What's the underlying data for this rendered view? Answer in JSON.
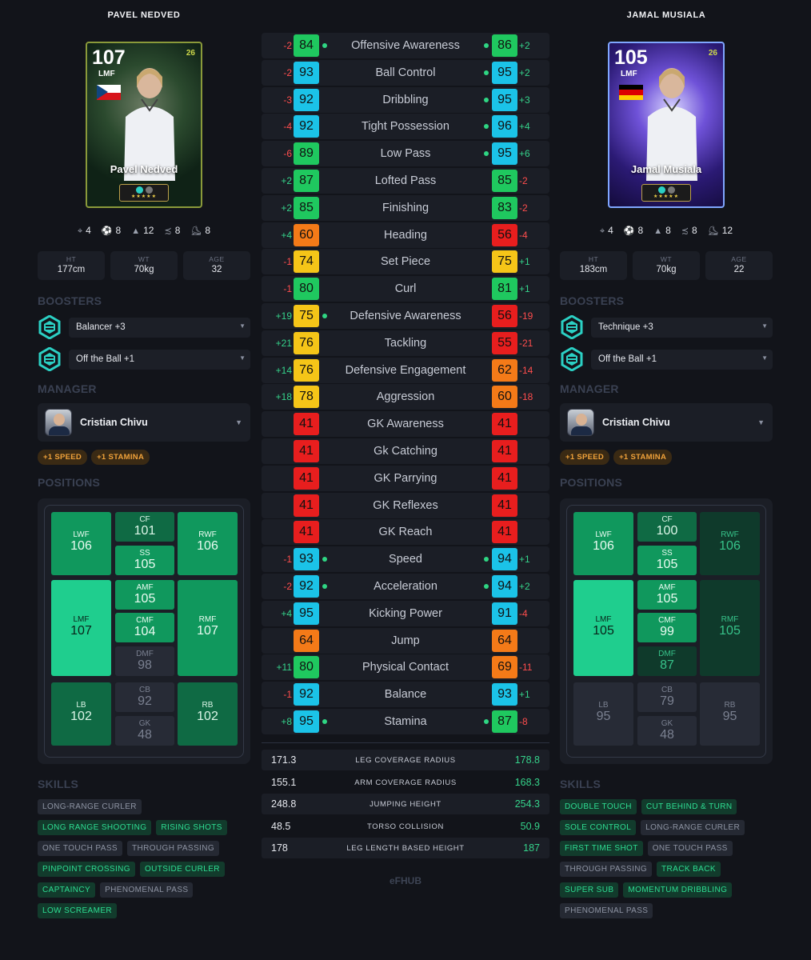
{
  "players": [
    {
      "name": "PAVEL NEDVED",
      "card": {
        "rating": "107",
        "position": "LMF",
        "name": "Pavel Nedved",
        "edition": "26",
        "flag": "czech-republic-flag"
      },
      "quick": [
        "4",
        "8",
        "12",
        "8",
        "8"
      ],
      "boxes": [
        {
          "label": "HT",
          "value": "177cm"
        },
        {
          "label": "WT",
          "value": "70kg"
        },
        {
          "label": "AGE",
          "value": "32"
        }
      ],
      "boosters_title": "BOOSTERS",
      "boosters": [
        "Balancer +3",
        "Off the Ball +1"
      ],
      "manager_title": "MANAGER",
      "manager": "Cristian Chivu",
      "manager_pills": [
        "+1 SPEED",
        "+1 STAMINA"
      ],
      "positions_title": "POSITIONS",
      "positions": {
        "LWF": "106",
        "CF": "101",
        "RWF": "106",
        "SS": "105",
        "LMF": "107",
        "AMF": "105",
        "RMF": "107",
        "CMF": "104",
        "DMF": "98",
        "LB": "102",
        "CB": "92",
        "RB": "102",
        "GK": "48"
      },
      "skills_title": "SKILLS",
      "skills": [
        {
          "name": "LONG-RANGE CURLER",
          "on": false
        },
        {
          "name": "LONG RANGE SHOOTING",
          "on": true
        },
        {
          "name": "RISING SHOTS",
          "on": true
        },
        {
          "name": "ONE TOUCH PASS",
          "on": false
        },
        {
          "name": "THROUGH PASSING",
          "on": false
        },
        {
          "name": "PINPOINT CROSSING",
          "on": true
        },
        {
          "name": "OUTSIDE CURLER",
          "on": true
        },
        {
          "name": "CAPTAINCY",
          "on": true
        },
        {
          "name": "PHENOMENAL PASS",
          "on": false
        },
        {
          "name": "LOW SCREAMER",
          "on": true
        }
      ]
    },
    {
      "name": "JAMAL MUSIALA",
      "card": {
        "rating": "105",
        "position": "LMF",
        "name": "Jamal Musiala",
        "edition": "26",
        "flag": "germany-flag"
      },
      "quick": [
        "4",
        "8",
        "8",
        "8",
        "12"
      ],
      "boxes": [
        {
          "label": "HT",
          "value": "183cm"
        },
        {
          "label": "WT",
          "value": "70kg"
        },
        {
          "label": "AGE",
          "value": "22"
        }
      ],
      "boosters_title": "BOOSTERS",
      "boosters": [
        "Technique +3",
        "Off the Ball +1"
      ],
      "manager_title": "MANAGER",
      "manager": "Cristian Chivu",
      "manager_pills": [
        "+1 SPEED",
        "+1 STAMINA"
      ],
      "positions_title": "POSITIONS",
      "positions": {
        "LWF": "106",
        "CF": "100",
        "RWF": "106",
        "SS": "105",
        "LMF": "105",
        "AMF": "105",
        "RMF": "105",
        "CMF": "99",
        "DMF": "87",
        "LB": "95",
        "CB": "79",
        "RB": "95",
        "GK": "48"
      },
      "skills_title": "SKILLS",
      "skills": [
        {
          "name": "DOUBLE TOUCH",
          "on": true
        },
        {
          "name": "CUT BEHIND & TURN",
          "on": true
        },
        {
          "name": "SOLE CONTROL",
          "on": true
        },
        {
          "name": "LONG-RANGE CURLER",
          "on": false
        },
        {
          "name": "FIRST TIME SHOT",
          "on": true
        },
        {
          "name": "ONE TOUCH PASS",
          "on": false
        },
        {
          "name": "THROUGH PASSING",
          "on": false
        },
        {
          "name": "TRACK BACK",
          "on": true
        },
        {
          "name": "SUPER SUB",
          "on": true
        },
        {
          "name": "MOMENTUM DRIBBLING",
          "on": true
        },
        {
          "name": "PHENOMENAL PASS",
          "on": false
        }
      ]
    }
  ],
  "stats": [
    {
      "label": "Offensive Awareness",
      "l": "84",
      "lc": "green",
      "ld": "-2",
      "ldot": true,
      "r": "86",
      "rc": "green",
      "rd": "+2",
      "rdot": true
    },
    {
      "label": "Ball Control",
      "l": "93",
      "lc": "blue",
      "ld": "-2",
      "ldot": false,
      "r": "95",
      "rc": "blue",
      "rd": "+2",
      "rdot": true
    },
    {
      "label": "Dribbling",
      "l": "92",
      "lc": "blue",
      "ld": "-3",
      "ldot": false,
      "r": "95",
      "rc": "blue",
      "rd": "+3",
      "rdot": true
    },
    {
      "label": "Tight Possession",
      "l": "92",
      "lc": "blue",
      "ld": "-4",
      "ldot": false,
      "r": "96",
      "rc": "blue",
      "rd": "+4",
      "rdot": true
    },
    {
      "label": "Low Pass",
      "l": "89",
      "lc": "green",
      "ld": "-6",
      "ldot": false,
      "r": "95",
      "rc": "blue",
      "rd": "+6",
      "rdot": true
    },
    {
      "label": "Lofted Pass",
      "l": "87",
      "lc": "green",
      "ld": "+2",
      "ldot": false,
      "r": "85",
      "rc": "green",
      "rd": "-2",
      "rdot": false
    },
    {
      "label": "Finishing",
      "l": "85",
      "lc": "green",
      "ld": "+2",
      "ldot": false,
      "r": "83",
      "rc": "green",
      "rd": "-2",
      "rdot": false
    },
    {
      "label": "Heading",
      "l": "60",
      "lc": "orange",
      "ld": "+4",
      "ldot": false,
      "r": "56",
      "rc": "red",
      "rd": "-4",
      "rdot": false
    },
    {
      "label": "Set Piece",
      "l": "74",
      "lc": "yellow",
      "ld": "-1",
      "ldot": false,
      "r": "75",
      "rc": "yellow",
      "rd": "+1",
      "rdot": false
    },
    {
      "label": "Curl",
      "l": "80",
      "lc": "green",
      "ld": "-1",
      "ldot": false,
      "r": "81",
      "rc": "green",
      "rd": "+1",
      "rdot": false
    },
    {
      "label": "Defensive Awareness",
      "l": "75",
      "lc": "yellow",
      "ld": "+19",
      "ldot": true,
      "r": "56",
      "rc": "red",
      "rd": "-19",
      "rdot": false
    },
    {
      "label": "Tackling",
      "l": "76",
      "lc": "yellow",
      "ld": "+21",
      "ldot": false,
      "r": "55",
      "rc": "red",
      "rd": "-21",
      "rdot": false
    },
    {
      "label": "Defensive Engagement",
      "l": "76",
      "lc": "yellow",
      "ld": "+14",
      "ldot": false,
      "r": "62",
      "rc": "orange",
      "rd": "-14",
      "rdot": false
    },
    {
      "label": "Aggression",
      "l": "78",
      "lc": "yellow",
      "ld": "+18",
      "ldot": false,
      "r": "60",
      "rc": "orange",
      "rd": "-18",
      "rdot": false
    },
    {
      "label": "GK Awareness",
      "l": "41",
      "lc": "red",
      "ld": "",
      "ldot": false,
      "r": "41",
      "rc": "red",
      "rd": "",
      "rdot": false
    },
    {
      "label": "Gk Catching",
      "l": "41",
      "lc": "red",
      "ld": "",
      "ldot": false,
      "r": "41",
      "rc": "red",
      "rd": "",
      "rdot": false
    },
    {
      "label": "GK Parrying",
      "l": "41",
      "lc": "red",
      "ld": "",
      "ldot": false,
      "r": "41",
      "rc": "red",
      "rd": "",
      "rdot": false
    },
    {
      "label": "GK Reflexes",
      "l": "41",
      "lc": "red",
      "ld": "",
      "ldot": false,
      "r": "41",
      "rc": "red",
      "rd": "",
      "rdot": false
    },
    {
      "label": "GK Reach",
      "l": "41",
      "lc": "red",
      "ld": "",
      "ldot": false,
      "r": "41",
      "rc": "red",
      "rd": "",
      "rdot": false
    },
    {
      "label": "Speed",
      "l": "93",
      "lc": "blue",
      "ld": "-1",
      "ldot": true,
      "r": "94",
      "rc": "blue",
      "rd": "+1",
      "rdot": true
    },
    {
      "label": "Acceleration",
      "l": "92",
      "lc": "blue",
      "ld": "-2",
      "ldot": true,
      "r": "94",
      "rc": "blue",
      "rd": "+2",
      "rdot": true
    },
    {
      "label": "Kicking Power",
      "l": "95",
      "lc": "blue",
      "ld": "+4",
      "ldot": false,
      "r": "91",
      "rc": "blue",
      "rd": "-4",
      "rdot": false
    },
    {
      "label": "Jump",
      "l": "64",
      "lc": "orange",
      "ld": "",
      "ldot": false,
      "r": "64",
      "rc": "orange",
      "rd": "",
      "rdot": false
    },
    {
      "label": "Physical Contact",
      "l": "80",
      "lc": "green",
      "ld": "+11",
      "ldot": false,
      "r": "69",
      "rc": "orange",
      "rd": "-11",
      "rdot": false
    },
    {
      "label": "Balance",
      "l": "92",
      "lc": "blue",
      "ld": "-1",
      "ldot": false,
      "r": "93",
      "rc": "blue",
      "rd": "+1",
      "rdot": false
    },
    {
      "label": "Stamina",
      "l": "95",
      "lc": "blue",
      "ld": "+8",
      "ldot": true,
      "r": "87",
      "rc": "green",
      "rd": "-8",
      "rdot": true
    }
  ],
  "measures": [
    {
      "name": "LEG COVERAGE RADIUS",
      "l": "171.3",
      "r": "178.8"
    },
    {
      "name": "ARM COVERAGE RADIUS",
      "l": "155.1",
      "r": "168.3"
    },
    {
      "name": "JUMPING HEIGHT",
      "l": "248.8",
      "r": "254.3"
    },
    {
      "name": "TORSO COLLISION",
      "l": "48.5",
      "r": "50.9"
    },
    {
      "name": "LEG LENGTH BASED HEIGHT",
      "l": "178",
      "r": "187"
    }
  ],
  "brand": "eFHUB",
  "quick_icons": [
    "crosshair-icon",
    "ball-icon",
    "cone-icon",
    "pass-icon",
    "boot-icon"
  ],
  "colors": {
    "accent_green": "#1fce8e",
    "booster_cyan": "#2bd0c4",
    "pill_orange": "#f0a23a"
  }
}
